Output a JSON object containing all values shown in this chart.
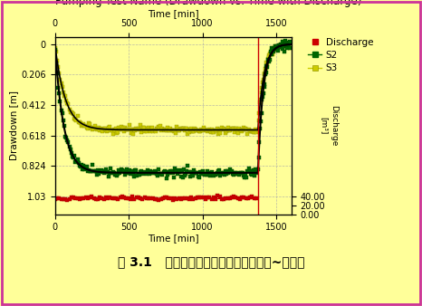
{
  "title": "Pumping Test Name (Drawdown vs. Time with Discharge)",
  "xlabel": "Time [min]",
  "ylabel_left": "Drawdown [m]",
  "ylabel_right": "Discharge\n[m³]",
  "bg_color_outer": "#FFFF99",
  "bg_color_plot": "#FFFF99",
  "bg_color_bottom": "#FFFFFF",
  "border_color": "#CC3399",
  "xlim": [
    0,
    1600
  ],
  "xticks": [
    0,
    500,
    1000,
    1500
  ],
  "ylim_left_bottom": 1.15,
  "ylim_left_top": -0.05,
  "yticks_left": [
    0,
    0.206,
    0.412,
    0.618,
    0.824,
    1.03
  ],
  "ylim_right": [
    -5,
    60
  ],
  "yticks_right": [
    0.0,
    20.0,
    40.0
  ],
  "ytick_right_labels": [
    "0.00",
    "20.00",
    "40.00"
  ],
  "legend_labels": [
    "Discharge",
    "S2",
    "S3"
  ],
  "legend_colors": [
    "#CC0000",
    "#006600",
    "#CCCC00"
  ],
  "grid_color": "#AAAAAA",
  "s2_color": "#006600",
  "s3_color": "#CCCC00",
  "discharge_color": "#CC0000",
  "black_line_color": "#000000",
  "vline_x": 1375,
  "vline_color": "#CC0000",
  "title_fontsize": 8.5,
  "axis_label_fontsize": 7.5,
  "tick_fontsize": 7,
  "legend_fontsize": 7.5,
  "caption_text": "图 3.1   大流量单井抽水试验观测孔降深~时间图",
  "caption_fontsize": 10
}
